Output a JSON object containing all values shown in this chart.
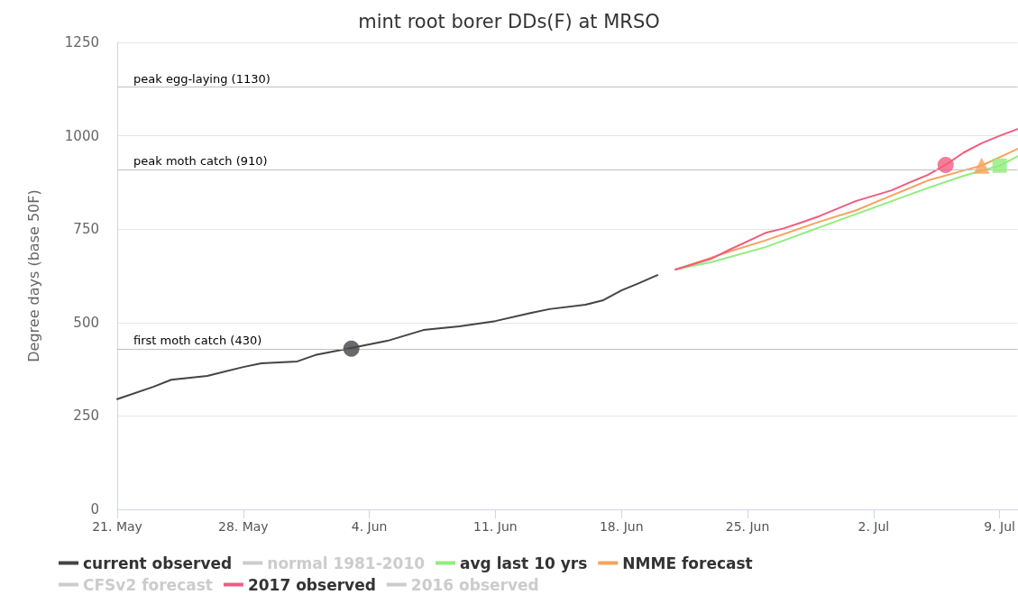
{
  "chart_data": {
    "type": "line",
    "title": "mint root borer DDs(F) at MRSO",
    "ylabel": "Degree days (base 50F)",
    "xlim": [
      "--05-21",
      "--07-10"
    ],
    "xticks": [
      {
        "value": "--05-21",
        "label": "21. May"
      },
      {
        "value": "--05-28",
        "label": "28. May"
      },
      {
        "value": "--06-04",
        "label": "4. Jun"
      },
      {
        "value": "--06-11",
        "label": "11. Jun"
      },
      {
        "value": "--06-18",
        "label": "18. Jun"
      },
      {
        "value": "--06-25",
        "label": "25. Jun"
      },
      {
        "value": "--07-02",
        "label": "2. Jul"
      },
      {
        "value": "--07-09",
        "label": "9. Jul"
      }
    ],
    "ylim": [
      0,
      1250
    ],
    "yticks": [
      0,
      250,
      500,
      750,
      1000,
      1250
    ],
    "grid": "y",
    "legend": "bottom",
    "marker": "none",
    "ref_lines": [
      {
        "axis": "y",
        "value": 430,
        "label": "first moth catch (430)"
      },
      {
        "axis": "y",
        "value": 910,
        "label": "peak moth catch (910)"
      },
      {
        "axis": "y",
        "value": 1130,
        "label": "peak egg-laying (1130)"
      }
    ],
    "series": [
      {
        "name": "current observed",
        "color": "#434348",
        "x": [
          "--05-21",
          "--05-23",
          "--05-24",
          "--05-26",
          "--05-28",
          "--05-29",
          "--05-31",
          "--06-01",
          "--06-03",
          "--06-05",
          "--06-07",
          "--06-08",
          "--06-09",
          "--06-11",
          "--06-13",
          "--06-14",
          "--06-16",
          "--06-17",
          "--06-18",
          "--06-19",
          "--06-20"
        ],
        "values": [
          295,
          328,
          347,
          357,
          381,
          391,
          396,
          413,
          432,
          451,
          480,
          485,
          490,
          504,
          526,
          536,
          548,
          560,
          586,
          606,
          627
        ]
      },
      {
        "name": "normal 1981-2010",
        "color": "#cccccc"
      },
      {
        "name": "avg last 10 yrs",
        "color": "#90ed7d",
        "x": [
          "--06-21",
          "--06-23",
          "--06-26",
          "--06-29",
          "--07-01",
          "--07-03",
          "--07-05",
          "--07-07",
          "--07-09",
          "--07-10"
        ],
        "values": [
          642,
          662,
          702,
          755,
          790,
          825,
          860,
          893,
          920,
          945
        ]
      },
      {
        "name": "NMME forecast",
        "color": "#f7a35c",
        "x": [
          "--06-21",
          "--06-24",
          "--06-26",
          "--06-29",
          "--07-01",
          "--07-03",
          "--07-05",
          "--07-07",
          "--07-08",
          "--07-10"
        ],
        "values": [
          642,
          690,
          720,
          770,
          800,
          840,
          880,
          907,
          920,
          965
        ]
      },
      {
        "name": "CFSv2 forecast",
        "color": "#cccccc"
      },
      {
        "name": "2017 observed",
        "color": "#f15c80",
        "x": [
          "--06-21",
          "--06-23",
          "--06-24",
          "--06-26",
          "--06-27",
          "--06-28",
          "--06-29",
          "--07-01",
          "--07-03",
          "--07-04",
          "--07-05",
          "--07-06",
          "--07-07",
          "--07-08",
          "--07-09",
          "--07-10"
        ],
        "values": [
          642,
          671,
          695,
          740,
          752,
          768,
          785,
          825,
          854,
          875,
          895,
          922,
          955,
          980,
          1000,
          1018
        ]
      },
      {
        "name": "2016 observed",
        "color": "#cccccc"
      },
      {
        "type": "scatter",
        "marker": "circle",
        "color": "#434348",
        "x": [
          "--06-03"
        ],
        "values": [
          430
        ]
      },
      {
        "type": "scatter",
        "marker": "circle",
        "color": "#f15c80",
        "x": [
          "--07-06"
        ],
        "values": [
          922
        ]
      },
      {
        "type": "scatter",
        "marker": "triangle",
        "color": "#f7a35c",
        "x": [
          "--07-08"
        ],
        "values": [
          920
        ]
      },
      {
        "type": "scatter",
        "marker": "square",
        "color": "#90ed7d",
        "x": [
          "--07-09"
        ],
        "values": [
          920
        ]
      }
    ]
  }
}
